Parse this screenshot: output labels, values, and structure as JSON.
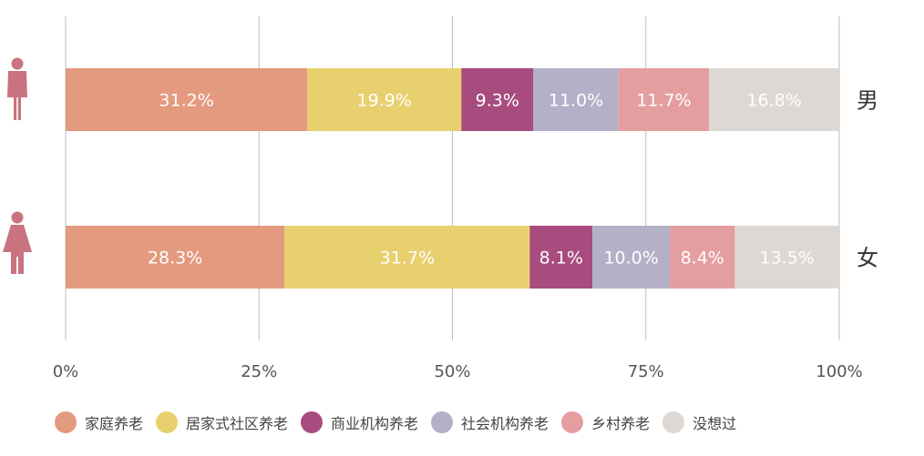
{
  "chart_data": {
    "type": "bar",
    "orientation": "horizontal",
    "stacked": "percent",
    "categories": [
      "男",
      "女"
    ],
    "series": [
      {
        "name": "家庭养老",
        "color": "#E39A7E",
        "values": [
          31.2,
          28.3
        ]
      },
      {
        "name": "居家式社区养老",
        "color": "#E8D06F",
        "values": [
          19.9,
          31.7
        ]
      },
      {
        "name": "商业机构养老",
        "color": "#A84B7E",
        "values": [
          9.3,
          8.1
        ]
      },
      {
        "name": "社会机构养老",
        "color": "#B4B0C8",
        "values": [
          11.0,
          10.0
        ]
      },
      {
        "name": "乡村养老",
        "color": "#E59EA0",
        "values": [
          11.7,
          8.4
        ]
      },
      {
        "name": "没想过",
        "color": "#DDD8D4",
        "values": [
          16.8,
          13.5
        ]
      }
    ],
    "data_labels": [
      [
        "31.2%",
        "19.9%",
        "9.3%",
        "11.0%",
        "11.7%",
        "16.8%"
      ],
      [
        "28.3%",
        "31.7%",
        "8.1%",
        "10.0%",
        "8.4%",
        "13.5%"
      ]
    ],
    "xlim": [
      0,
      100
    ],
    "xticks": [
      0,
      25,
      50,
      75,
      100
    ],
    "xtick_labels": [
      "0%",
      "25%",
      "50%",
      "75%",
      "100%"
    ],
    "grid": "vertical",
    "legend": "bottom",
    "category_icons": [
      "male-person-icon",
      "female-person-icon"
    ],
    "icon_color": "#C9737F"
  }
}
